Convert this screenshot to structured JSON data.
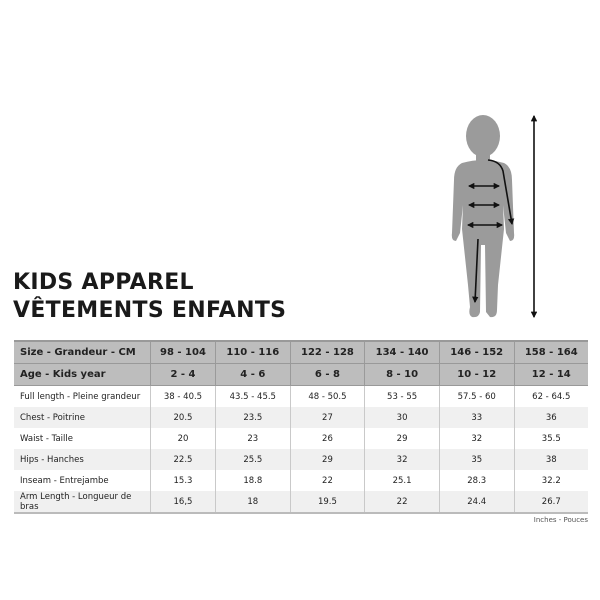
{
  "title_line1": "KIDS APPAREL",
  "title_line2": "VÊTEMENTS ENFANTS",
  "figure_icon": "child-silhouette-measurement-icon",
  "colors": {
    "header_bg": "#bdbdbd",
    "alt_row_bg": "#f0f0f0",
    "silhouette": "#9b9b9b"
  },
  "table": {
    "header": {
      "label": "Size - Grandeur - CM",
      "values": [
        "98 - 104",
        "110 - 116",
        "122 - 128",
        "134 - 140",
        "146 - 152",
        "158 - 164"
      ]
    },
    "age": {
      "label": "Age - Kids year",
      "values": [
        "2 - 4",
        "4 - 6",
        "6 - 8",
        "8 - 10",
        "10 - 12",
        "12 - 14"
      ]
    },
    "rows": [
      {
        "label": "Full length - Pleine grandeur",
        "values": [
          "38 - 40.5",
          "43.5 - 45.5",
          "48 - 50.5",
          "53 - 55",
          "57.5 - 60",
          "62 - 64.5"
        ]
      },
      {
        "label": "Chest - Poitrine",
        "values": [
          "20.5",
          "23.5",
          "27",
          "30",
          "33",
          "36"
        ]
      },
      {
        "label": "Waist - Taille",
        "values": [
          "20",
          "23",
          "26",
          "29",
          "32",
          "35.5"
        ]
      },
      {
        "label": "Hips - Hanches",
        "values": [
          "22.5",
          "25.5",
          "29",
          "32",
          "35",
          "38"
        ]
      },
      {
        "label": "Inseam - Entrejambe",
        "values": [
          "15.3",
          "18.8",
          "22",
          "25.1",
          "28.3",
          "32.2"
        ]
      },
      {
        "label": "Arm Length - Longueur de bras",
        "values": [
          "16,5",
          "18",
          "19.5",
          "22",
          "24.4",
          "26.7"
        ]
      }
    ]
  },
  "unit_note": "Inches - Pouces"
}
